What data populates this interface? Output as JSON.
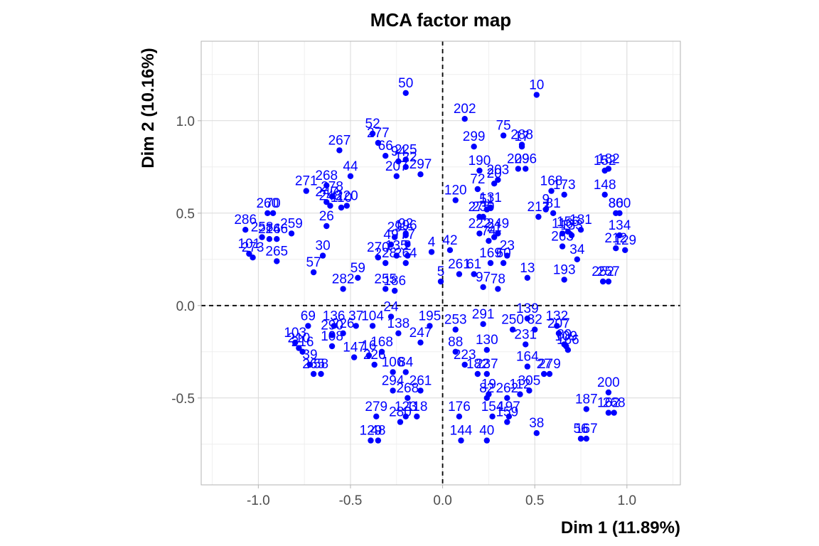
{
  "chart_data": {
    "type": "scatter",
    "title": "MCA factor map",
    "xlabel": "Dim 1 (11.89%)",
    "ylabel": "Dim 2 (10.16%)",
    "xlim": [
      -1.31,
      1.29
    ],
    "ylim": [
      -0.97,
      1.43
    ],
    "x_ticks": [
      -1.0,
      -0.5,
      0.0,
      0.5,
      1.0
    ],
    "x_tick_labels": [
      "-1.0",
      "-0.5",
      "0.0",
      "0.5",
      "1.0"
    ],
    "y_ticks": [
      -0.5,
      0.0,
      0.5,
      1.0
    ],
    "y_tick_labels": [
      "-0.5",
      "0.0",
      "0.5",
      "1.0"
    ],
    "grid": true,
    "reference_lines": {
      "x": 0,
      "y": 0,
      "style": "dashed"
    },
    "point_color": "#0000ff",
    "label_color": "#0000ff",
    "points": [
      {
        "label": "50",
        "x": -0.2,
        "y": 1.15
      },
      {
        "label": "10",
        "x": 0.51,
        "y": 1.14
      },
      {
        "label": "202",
        "x": 0.12,
        "y": 1.01
      },
      {
        "label": "288",
        "x": 0.43,
        "y": 0.87
      },
      {
        "label": "17",
        "x": 0.43,
        "y": 0.86
      },
      {
        "label": "75",
        "x": 0.33,
        "y": 0.92
      },
      {
        "label": "52",
        "x": -0.38,
        "y": 0.93
      },
      {
        "label": "277",
        "x": -0.35,
        "y": 0.88
      },
      {
        "label": "267",
        "x": -0.56,
        "y": 0.84
      },
      {
        "label": "66",
        "x": -0.31,
        "y": 0.81
      },
      {
        "label": "94",
        "x": -0.24,
        "y": 0.78
      },
      {
        "label": "225",
        "x": -0.2,
        "y": 0.79
      },
      {
        "label": "207",
        "x": -0.25,
        "y": 0.7
      },
      {
        "label": "122",
        "x": -0.2,
        "y": 0.75
      },
      {
        "label": "297",
        "x": -0.12,
        "y": 0.71
      },
      {
        "label": "44",
        "x": -0.5,
        "y": 0.7
      },
      {
        "label": "299",
        "x": 0.17,
        "y": 0.86
      },
      {
        "label": "209",
        "x": 0.41,
        "y": 0.74
      },
      {
        "label": "296",
        "x": 0.45,
        "y": 0.74
      },
      {
        "label": "190",
        "x": 0.2,
        "y": 0.73
      },
      {
        "label": "203",
        "x": 0.3,
        "y": 0.68
      },
      {
        "label": "20",
        "x": 0.28,
        "y": 0.66
      },
      {
        "label": "152",
        "x": 0.88,
        "y": 0.73
      },
      {
        "label": "182",
        "x": 0.9,
        "y": 0.74
      },
      {
        "label": "148",
        "x": 0.88,
        "y": 0.6
      },
      {
        "label": "268",
        "x": -0.63,
        "y": 0.65
      },
      {
        "label": "271",
        "x": -0.74,
        "y": 0.62
      },
      {
        "label": "278",
        "x": -0.6,
        "y": 0.59
      },
      {
        "label": "247",
        "x": -0.63,
        "y": 0.56
      },
      {
        "label": "248",
        "x": -0.61,
        "y": 0.54
      },
      {
        "label": "110",
        "x": -0.55,
        "y": 0.53
      },
      {
        "label": "220",
        "x": -0.52,
        "y": 0.54
      },
      {
        "label": "72",
        "x": 0.19,
        "y": 0.63
      },
      {
        "label": "120",
        "x": 0.07,
        "y": 0.57
      },
      {
        "label": "168",
        "x": 0.59,
        "y": 0.62
      },
      {
        "label": "173",
        "x": 0.66,
        "y": 0.6
      },
      {
        "label": "9",
        "x": 0.56,
        "y": 0.52
      },
      {
        "label": "81",
        "x": 0.6,
        "y": 0.5
      },
      {
        "label": "213",
        "x": 0.52,
        "y": 0.48
      },
      {
        "label": "131",
        "x": 0.26,
        "y": 0.53
      },
      {
        "label": "51",
        "x": 0.24,
        "y": 0.52
      },
      {
        "label": "86",
        "x": 0.94,
        "y": 0.5
      },
      {
        "label": "300",
        "x": 0.96,
        "y": 0.5
      },
      {
        "label": "260",
        "x": -0.95,
        "y": 0.5
      },
      {
        "label": "70",
        "x": -0.92,
        "y": 0.5
      },
      {
        "label": "275",
        "x": 0.2,
        "y": 0.48
      },
      {
        "label": "230",
        "x": 0.22,
        "y": 0.48
      },
      {
        "label": "286",
        "x": -1.07,
        "y": 0.41
      },
      {
        "label": "259",
        "x": -0.82,
        "y": 0.39
      },
      {
        "label": "26",
        "x": -0.63,
        "y": 0.43
      },
      {
        "label": "258",
        "x": -0.98,
        "y": 0.37
      },
      {
        "label": "216",
        "x": -0.94,
        "y": 0.36
      },
      {
        "label": "246",
        "x": -0.9,
        "y": 0.36
      },
      {
        "label": "116",
        "x": 0.65,
        "y": 0.39
      },
      {
        "label": "156",
        "x": 0.68,
        "y": 0.4
      },
      {
        "label": "181",
        "x": 0.75,
        "y": 0.41
      },
      {
        "label": "133",
        "x": 0.7,
        "y": 0.38
      },
      {
        "label": "134",
        "x": 0.96,
        "y": 0.38
      },
      {
        "label": "92",
        "x": -0.2,
        "y": 0.39
      },
      {
        "label": "196",
        "x": -0.2,
        "y": 0.38
      },
      {
        "label": "29",
        "x": -0.26,
        "y": 0.37
      },
      {
        "label": "49",
        "x": -0.28,
        "y": 0.33
      },
      {
        "label": "77",
        "x": -0.19,
        "y": 0.33
      },
      {
        "label": "4",
        "x": -0.06,
        "y": 0.29
      },
      {
        "label": "222",
        "x": 0.2,
        "y": 0.39
      },
      {
        "label": "249",
        "x": 0.3,
        "y": 0.39
      },
      {
        "label": "21",
        "x": 0.28,
        "y": 0.37
      },
      {
        "label": "74",
        "x": 0.25,
        "y": 0.35
      },
      {
        "label": "263",
        "x": 0.65,
        "y": 0.32
      },
      {
        "label": "212",
        "x": 0.94,
        "y": 0.31
      },
      {
        "label": "129",
        "x": 0.99,
        "y": 0.3
      },
      {
        "label": "101",
        "x": -1.05,
        "y": 0.28
      },
      {
        "label": "273",
        "x": -1.03,
        "y": 0.26
      },
      {
        "label": "30",
        "x": -0.65,
        "y": 0.27
      },
      {
        "label": "265",
        "x": -0.9,
        "y": 0.24
      },
      {
        "label": "42",
        "x": 0.04,
        "y": 0.3
      },
      {
        "label": "23",
        "x": 0.35,
        "y": 0.27
      },
      {
        "label": "34",
        "x": 0.73,
        "y": 0.25
      },
      {
        "label": "270",
        "x": -0.35,
        "y": 0.26
      },
      {
        "label": "135",
        "x": -0.25,
        "y": 0.27
      },
      {
        "label": "2",
        "x": -0.19,
        "y": 0.27
      },
      {
        "label": "228",
        "x": -0.31,
        "y": 0.23
      },
      {
        "label": "264",
        "x": -0.2,
        "y": 0.23
      },
      {
        "label": "169",
        "x": 0.26,
        "y": 0.23
      },
      {
        "label": "60",
        "x": 0.33,
        "y": 0.23
      },
      {
        "label": "57",
        "x": -0.7,
        "y": 0.18
      },
      {
        "label": "59",
        "x": -0.46,
        "y": 0.15
      },
      {
        "label": "261",
        "x": 0.09,
        "y": 0.17
      },
      {
        "label": "61",
        "x": 0.17,
        "y": 0.17
      },
      {
        "label": "13",
        "x": 0.46,
        "y": 0.15
      },
      {
        "label": "193",
        "x": 0.66,
        "y": 0.14
      },
      {
        "label": "257",
        "x": 0.9,
        "y": 0.13
      },
      {
        "label": "252",
        "x": 0.87,
        "y": 0.13
      },
      {
        "label": "5",
        "x": -0.01,
        "y": 0.13
      },
      {
        "label": "282",
        "x": -0.54,
        "y": 0.09
      },
      {
        "label": "255",
        "x": -0.31,
        "y": 0.09
      },
      {
        "label": "186",
        "x": -0.26,
        "y": 0.08
      },
      {
        "label": "97",
        "x": 0.22,
        "y": 0.1
      },
      {
        "label": "78",
        "x": 0.3,
        "y": 0.09
      },
      {
        "label": "24",
        "x": -0.28,
        "y": -0.06
      },
      {
        "label": "69",
        "x": -0.73,
        "y": -0.11
      },
      {
        "label": "136",
        "x": -0.59,
        "y": -0.11
      },
      {
        "label": "37",
        "x": -0.47,
        "y": -0.11
      },
      {
        "label": "104",
        "x": -0.38,
        "y": -0.11
      },
      {
        "label": "195",
        "x": -0.07,
        "y": -0.11
      },
      {
        "label": "291",
        "x": 0.22,
        "y": -0.1
      },
      {
        "label": "250",
        "x": 0.38,
        "y": -0.13
      },
      {
        "label": "139",
        "x": 0.46,
        "y": -0.07
      },
      {
        "label": "132",
        "x": 0.62,
        "y": -0.11
      },
      {
        "label": "290",
        "x": -0.6,
        "y": -0.16
      },
      {
        "label": "226",
        "x": -0.54,
        "y": -0.15
      },
      {
        "label": "138",
        "x": -0.24,
        "y": -0.15
      },
      {
        "label": "253",
        "x": 0.07,
        "y": -0.13
      },
      {
        "label": "32",
        "x": 0.5,
        "y": -0.13
      },
      {
        "label": "207b",
        "x": 0.63,
        "y": -0.15
      },
      {
        "label": "103",
        "x": -0.8,
        "y": -0.2
      },
      {
        "label": "231",
        "x": 0.45,
        "y": -0.21
      },
      {
        "label": "109",
        "x": 0.67,
        "y": -0.22
      },
      {
        "label": "89",
        "x": 0.66,
        "y": -0.21
      },
      {
        "label": "166",
        "x": 0.68,
        "y": -0.24
      },
      {
        "label": "247b",
        "x": -0.12,
        "y": -0.2
      },
      {
        "label": "210",
        "x": -0.78,
        "y": -0.23
      },
      {
        "label": "108",
        "x": -0.6,
        "y": -0.22
      },
      {
        "label": "216b",
        "x": -0.76,
        "y": -0.25
      },
      {
        "label": "88",
        "x": 0.07,
        "y": -0.25
      },
      {
        "label": "130",
        "x": 0.24,
        "y": -0.24
      },
      {
        "label": "147",
        "x": -0.48,
        "y": -0.28
      },
      {
        "label": "16",
        "x": -0.4,
        "y": -0.27
      },
      {
        "label": "168b",
        "x": -0.33,
        "y": -0.25
      },
      {
        "label": "39",
        "x": -0.72,
        "y": -0.32
      },
      {
        "label": "164",
        "x": 0.46,
        "y": -0.33
      },
      {
        "label": "226b",
        "x": -0.37,
        "y": -0.32
      },
      {
        "label": "223",
        "x": 0.12,
        "y": -0.32
      },
      {
        "label": "27",
        "x": 0.55,
        "y": -0.37
      },
      {
        "label": "279",
        "x": 0.58,
        "y": -0.37
      },
      {
        "label": "265b",
        "x": -0.7,
        "y": -0.37
      },
      {
        "label": "58",
        "x": -0.66,
        "y": -0.37
      },
      {
        "label": "182b",
        "x": 0.19,
        "y": -0.37
      },
      {
        "label": "237",
        "x": 0.24,
        "y": -0.37
      },
      {
        "label": "106",
        "x": -0.27,
        "y": -0.36
      },
      {
        "label": "84",
        "x": -0.2,
        "y": -0.36
      },
      {
        "label": "294",
        "x": -0.27,
        "y": -0.46
      },
      {
        "label": "261b",
        "x": -0.12,
        "y": -0.46
      },
      {
        "label": "305",
        "x": 0.47,
        "y": -0.46
      },
      {
        "label": "200",
        "x": 0.9,
        "y": -0.47
      },
      {
        "label": "19",
        "x": 0.25,
        "y": -0.48
      },
      {
        "label": "112",
        "x": 0.42,
        "y": -0.48
      },
      {
        "label": "82",
        "x": 0.24,
        "y": -0.5
      },
      {
        "label": "262",
        "x": 0.35,
        "y": -0.5
      },
      {
        "label": "268b",
        "x": -0.19,
        "y": -0.5
      },
      {
        "label": "187",
        "x": 0.78,
        "y": -0.56
      },
      {
        "label": "162",
        "x": 0.9,
        "y": -0.58
      },
      {
        "label": "268c",
        "x": 0.93,
        "y": -0.58
      },
      {
        "label": "176",
        "x": 0.09,
        "y": -0.6
      },
      {
        "label": "154",
        "x": 0.27,
        "y": -0.6
      },
      {
        "label": "197",
        "x": 0.36,
        "y": -0.6
      },
      {
        "label": "279b",
        "x": -0.36,
        "y": -0.6
      },
      {
        "label": "123",
        "x": -0.2,
        "y": -0.6
      },
      {
        "label": "118",
        "x": -0.14,
        "y": -0.6
      },
      {
        "label": "280",
        "x": -0.23,
        "y": -0.63
      },
      {
        "label": "159",
        "x": 0.35,
        "y": -0.63
      },
      {
        "label": "38",
        "x": 0.51,
        "y": -0.69
      },
      {
        "label": "56",
        "x": 0.75,
        "y": -0.72
      },
      {
        "label": "167",
        "x": 0.78,
        "y": -0.72
      },
      {
        "label": "144",
        "x": 0.1,
        "y": -0.73
      },
      {
        "label": "40",
        "x": 0.24,
        "y": -0.73
      },
      {
        "label": "129b",
        "x": -0.39,
        "y": -0.73
      },
      {
        "label": "48",
        "x": -0.35,
        "y": -0.73
      }
    ]
  }
}
